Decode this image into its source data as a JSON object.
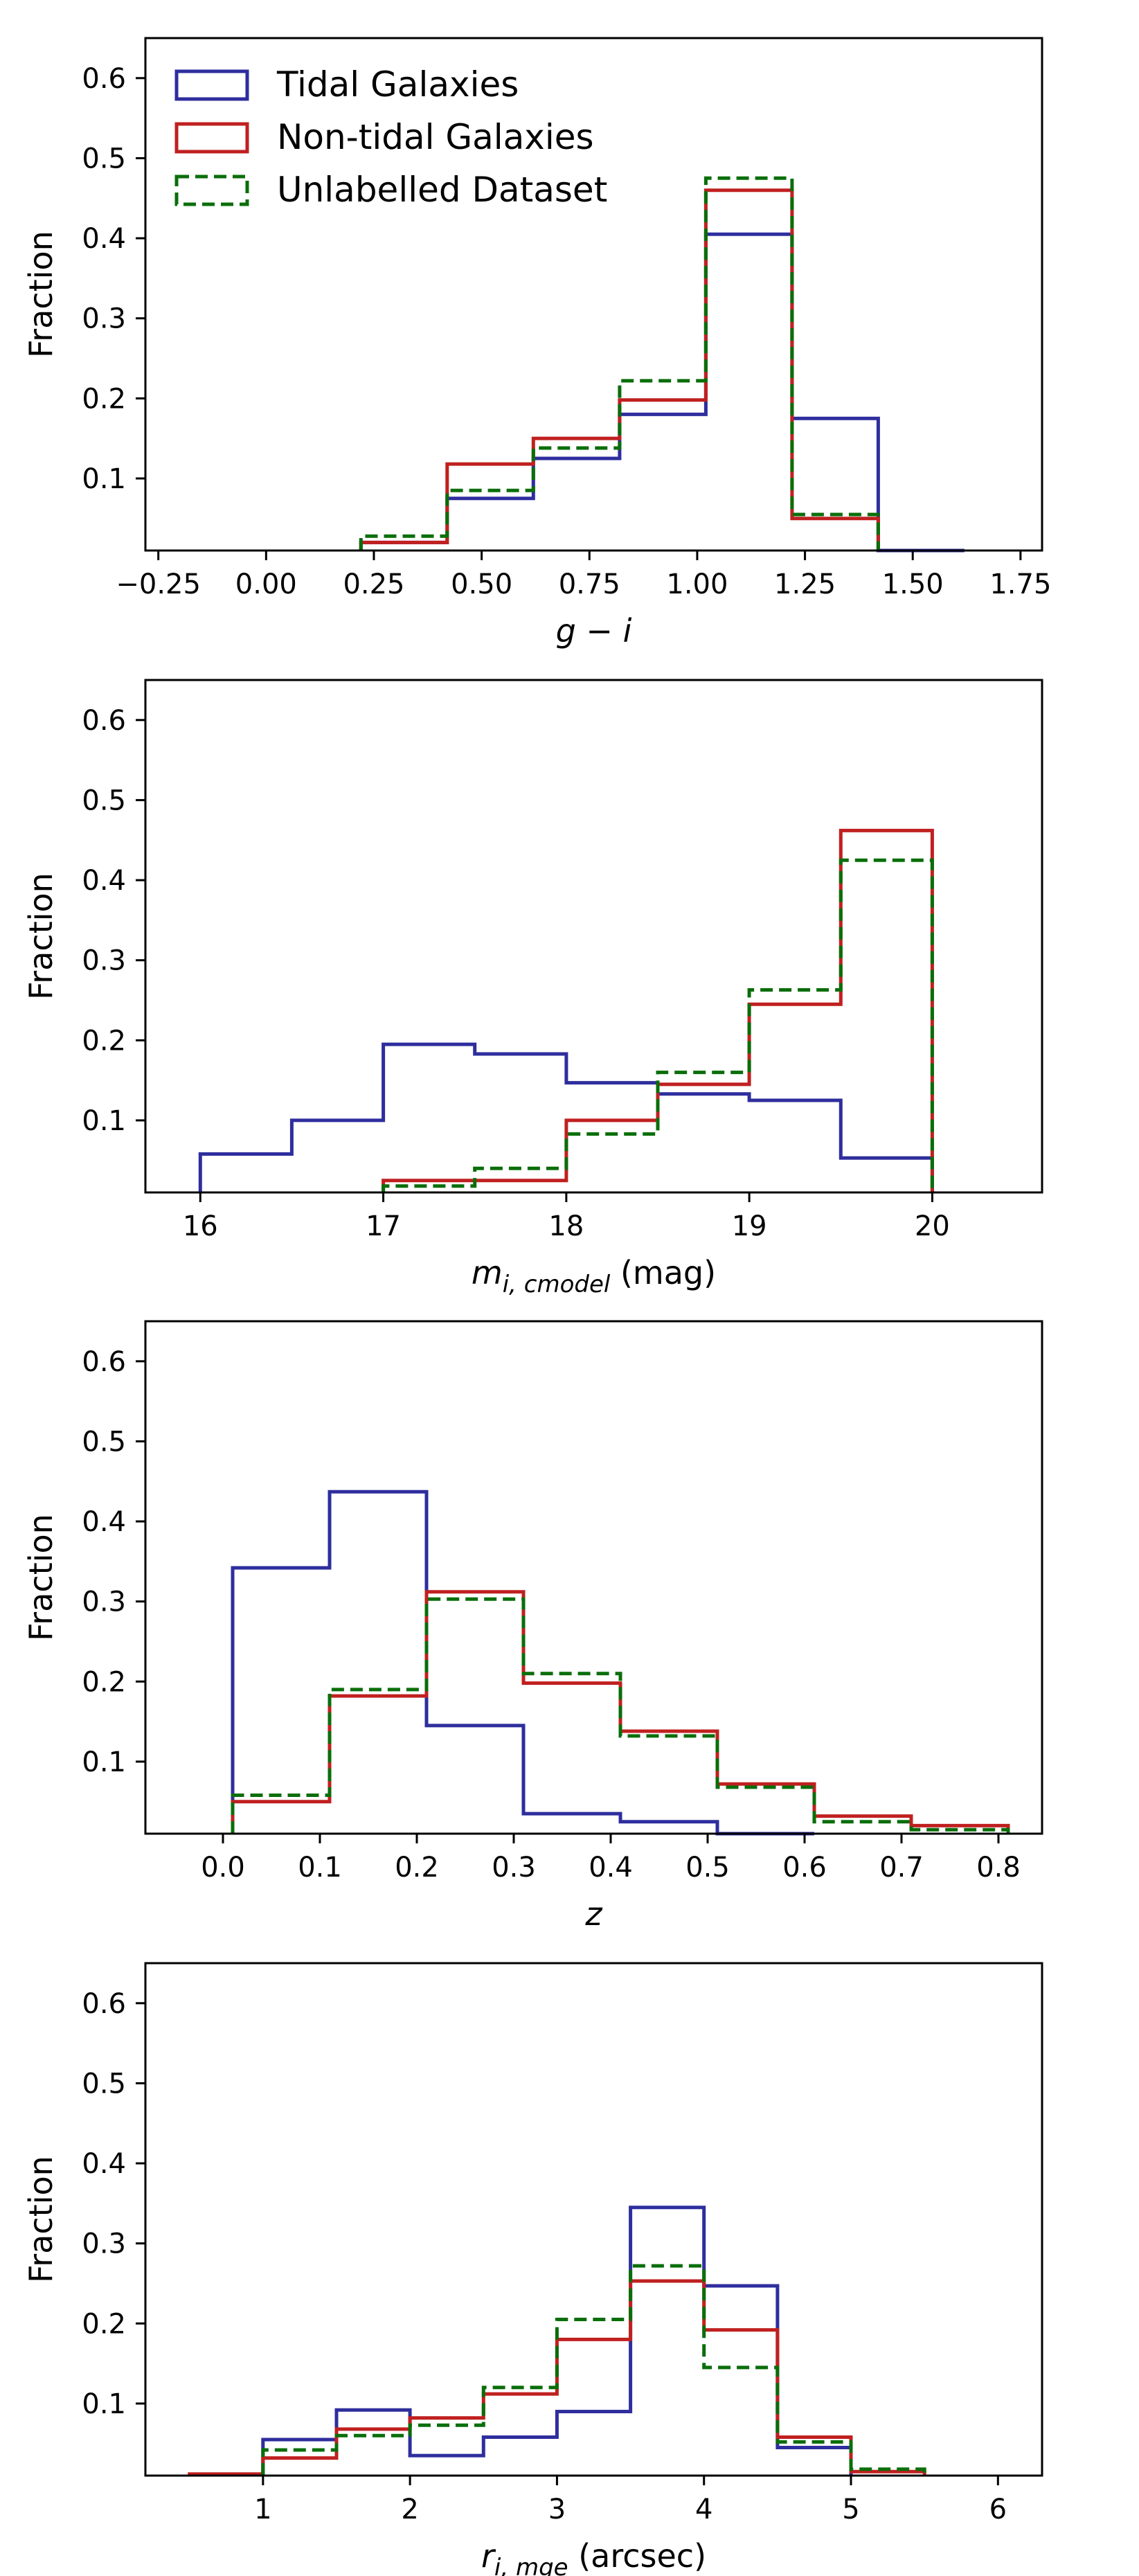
{
  "colors": {
    "tidal": "#2e2e9e",
    "nontidal": "#c02020",
    "unlabelled": "#0a6e0a"
  },
  "legend": {
    "items": [
      {
        "key": "tidal",
        "label": "Tidal Galaxies",
        "style": "solid"
      },
      {
        "key": "nontidal",
        "label": "Non-tidal Galaxies",
        "style": "solid"
      },
      {
        "key": "unlabelled",
        "label": "Unlabelled Dataset",
        "style": "dashed"
      }
    ]
  },
  "chart_data": [
    {
      "type": "step-histogram",
      "id": "g-i",
      "xlabel": {
        "math": "g − i",
        "unit": ""
      },
      "ylabel": "Fraction",
      "xlim": [
        -0.28,
        1.8
      ],
      "ylim": [
        0.01,
        0.65
      ],
      "xticks": [
        -0.25,
        0.0,
        0.25,
        0.5,
        0.75,
        1.0,
        1.25,
        1.5,
        1.75
      ],
      "xtick_labels": [
        "−0.25",
        "0.00",
        "0.25",
        "0.50",
        "0.75",
        "1.00",
        "1.25",
        "1.50",
        "1.75"
      ],
      "yticks": [
        0.1,
        0.2,
        0.3,
        0.4,
        0.5,
        0.6
      ],
      "ytick_labels": [
        "0.1",
        "0.2",
        "0.3",
        "0.4",
        "0.5",
        "0.6"
      ],
      "series": [
        {
          "name": "Tidal Galaxies",
          "key": "tidal",
          "edges": [
            0.22,
            0.42,
            0.62,
            0.82,
            1.02,
            1.22,
            1.42,
            1.62
          ],
          "values": [
            0.02,
            0.075,
            0.125,
            0.18,
            0.405,
            0.175,
            0.01
          ]
        },
        {
          "name": "Non-tidal Galaxies",
          "key": "nontidal",
          "edges": [
            0.22,
            0.42,
            0.62,
            0.82,
            1.02,
            1.22,
            1.42
          ],
          "values": [
            0.02,
            0.118,
            0.15,
            0.198,
            0.46,
            0.05
          ]
        },
        {
          "name": "Unlabelled Dataset",
          "key": "unlabelled",
          "edges": [
            0.22,
            0.42,
            0.62,
            0.82,
            1.02,
            1.22,
            1.42
          ],
          "values": [
            0.028,
            0.085,
            0.138,
            0.222,
            0.475,
            0.055
          ]
        }
      ]
    },
    {
      "type": "step-histogram",
      "id": "mag",
      "xlabel": {
        "math": "m",
        "sub": "i, cmodel",
        "unit": " (mag)"
      },
      "ylabel": "Fraction",
      "xlim": [
        15.7,
        20.6
      ],
      "ylim": [
        0.01,
        0.65
      ],
      "xticks": [
        16,
        17,
        18,
        19,
        20
      ],
      "xtick_labels": [
        "16",
        "17",
        "18",
        "19",
        "20"
      ],
      "yticks": [
        0.1,
        0.2,
        0.3,
        0.4,
        0.5,
        0.6
      ],
      "ytick_labels": [
        "0.1",
        "0.2",
        "0.3",
        "0.4",
        "0.5",
        "0.6"
      ],
      "series": [
        {
          "name": "Tidal Galaxies",
          "key": "tidal",
          "edges": [
            16,
            16.5,
            17,
            17.5,
            18,
            18.5,
            19,
            19.5,
            20
          ],
          "values": [
            0.058,
            0.1,
            0.195,
            0.183,
            0.147,
            0.133,
            0.125,
            0.053
          ]
        },
        {
          "name": "Non-tidal Galaxies",
          "key": "nontidal",
          "edges": [
            17,
            17.5,
            18,
            18.5,
            19,
            19.5,
            20
          ],
          "values": [
            0.025,
            0.025,
            0.1,
            0.145,
            0.245,
            0.462
          ]
        },
        {
          "name": "Unlabelled Dataset",
          "key": "unlabelled",
          "edges": [
            17,
            17.5,
            18,
            18.5,
            19,
            19.5,
            20
          ],
          "values": [
            0.018,
            0.04,
            0.083,
            0.16,
            0.263,
            0.425
          ]
        }
      ]
    },
    {
      "type": "step-histogram",
      "id": "z",
      "xlabel": {
        "math": "z",
        "unit": ""
      },
      "ylabel": "Fraction",
      "xlim": [
        -0.08,
        0.845
      ],
      "ylim": [
        0.01,
        0.65
      ],
      "xticks": [
        0.0,
        0.1,
        0.2,
        0.3,
        0.4,
        0.5,
        0.6,
        0.7,
        0.8
      ],
      "xtick_labels": [
        "0.0",
        "0.1",
        "0.2",
        "0.3",
        "0.4",
        "0.5",
        "0.6",
        "0.7",
        "0.8"
      ],
      "yticks": [
        0.1,
        0.2,
        0.3,
        0.4,
        0.5,
        0.6
      ],
      "ytick_labels": [
        "0.1",
        "0.2",
        "0.3",
        "0.4",
        "0.5",
        "0.6"
      ],
      "series": [
        {
          "name": "Tidal Galaxies",
          "key": "tidal",
          "edges": [
            0.01,
            0.11,
            0.21,
            0.31,
            0.41,
            0.51,
            0.61
          ],
          "values": [
            0.342,
            0.437,
            0.145,
            0.035,
            0.025,
            0.01
          ]
        },
        {
          "name": "Non-tidal Galaxies",
          "key": "nontidal",
          "edges": [
            0.01,
            0.11,
            0.21,
            0.31,
            0.41,
            0.51,
            0.61,
            0.71,
            0.81
          ],
          "values": [
            0.05,
            0.182,
            0.312,
            0.198,
            0.138,
            0.072,
            0.032,
            0.02
          ]
        },
        {
          "name": "Unlabelled Dataset",
          "key": "unlabelled",
          "edges": [
            0.01,
            0.11,
            0.21,
            0.31,
            0.41,
            0.51,
            0.61,
            0.71,
            0.81
          ],
          "values": [
            0.058,
            0.19,
            0.303,
            0.21,
            0.132,
            0.068,
            0.025,
            0.015
          ]
        }
      ]
    },
    {
      "type": "step-histogram",
      "id": "r",
      "xlabel": {
        "math": "r",
        "sub": "i, mge",
        "unit": " (arcsec)"
      },
      "ylabel": "Fraction",
      "xlim": [
        0.2,
        6.3
      ],
      "ylim": [
        0.01,
        0.65
      ],
      "xticks": [
        1,
        2,
        3,
        4,
        5,
        6
      ],
      "xtick_labels": [
        "1",
        "2",
        "3",
        "4",
        "5",
        "6"
      ],
      "yticks": [
        0.1,
        0.2,
        0.3,
        0.4,
        0.5,
        0.6
      ],
      "ytick_labels": [
        "0.1",
        "0.2",
        "0.3",
        "0.4",
        "0.5",
        "0.6"
      ],
      "series": [
        {
          "name": "Tidal Galaxies",
          "key": "tidal",
          "edges": [
            1,
            1.5,
            2,
            2.5,
            3,
            3.5,
            4,
            4.5,
            5
          ],
          "values": [
            0.055,
            0.092,
            0.035,
            0.058,
            0.09,
            0.345,
            0.247,
            0.045
          ]
        },
        {
          "name": "Non-tidal Galaxies",
          "key": "nontidal",
          "edges": [
            0.5,
            1,
            1.5,
            2,
            2.5,
            3,
            3.5,
            4,
            4.5,
            5,
            5.5
          ],
          "values": [
            0.012,
            0.032,
            0.068,
            0.082,
            0.112,
            0.18,
            0.253,
            0.192,
            0.058,
            0.015
          ]
        },
        {
          "name": "Unlabelled Dataset",
          "key": "unlabelled",
          "edges": [
            1,
            1.5,
            2,
            2.5,
            3,
            3.5,
            4,
            4.5,
            5,
            5.5
          ],
          "values": [
            0.042,
            0.06,
            0.073,
            0.12,
            0.205,
            0.272,
            0.145,
            0.052,
            0.018
          ]
        }
      ]
    }
  ]
}
